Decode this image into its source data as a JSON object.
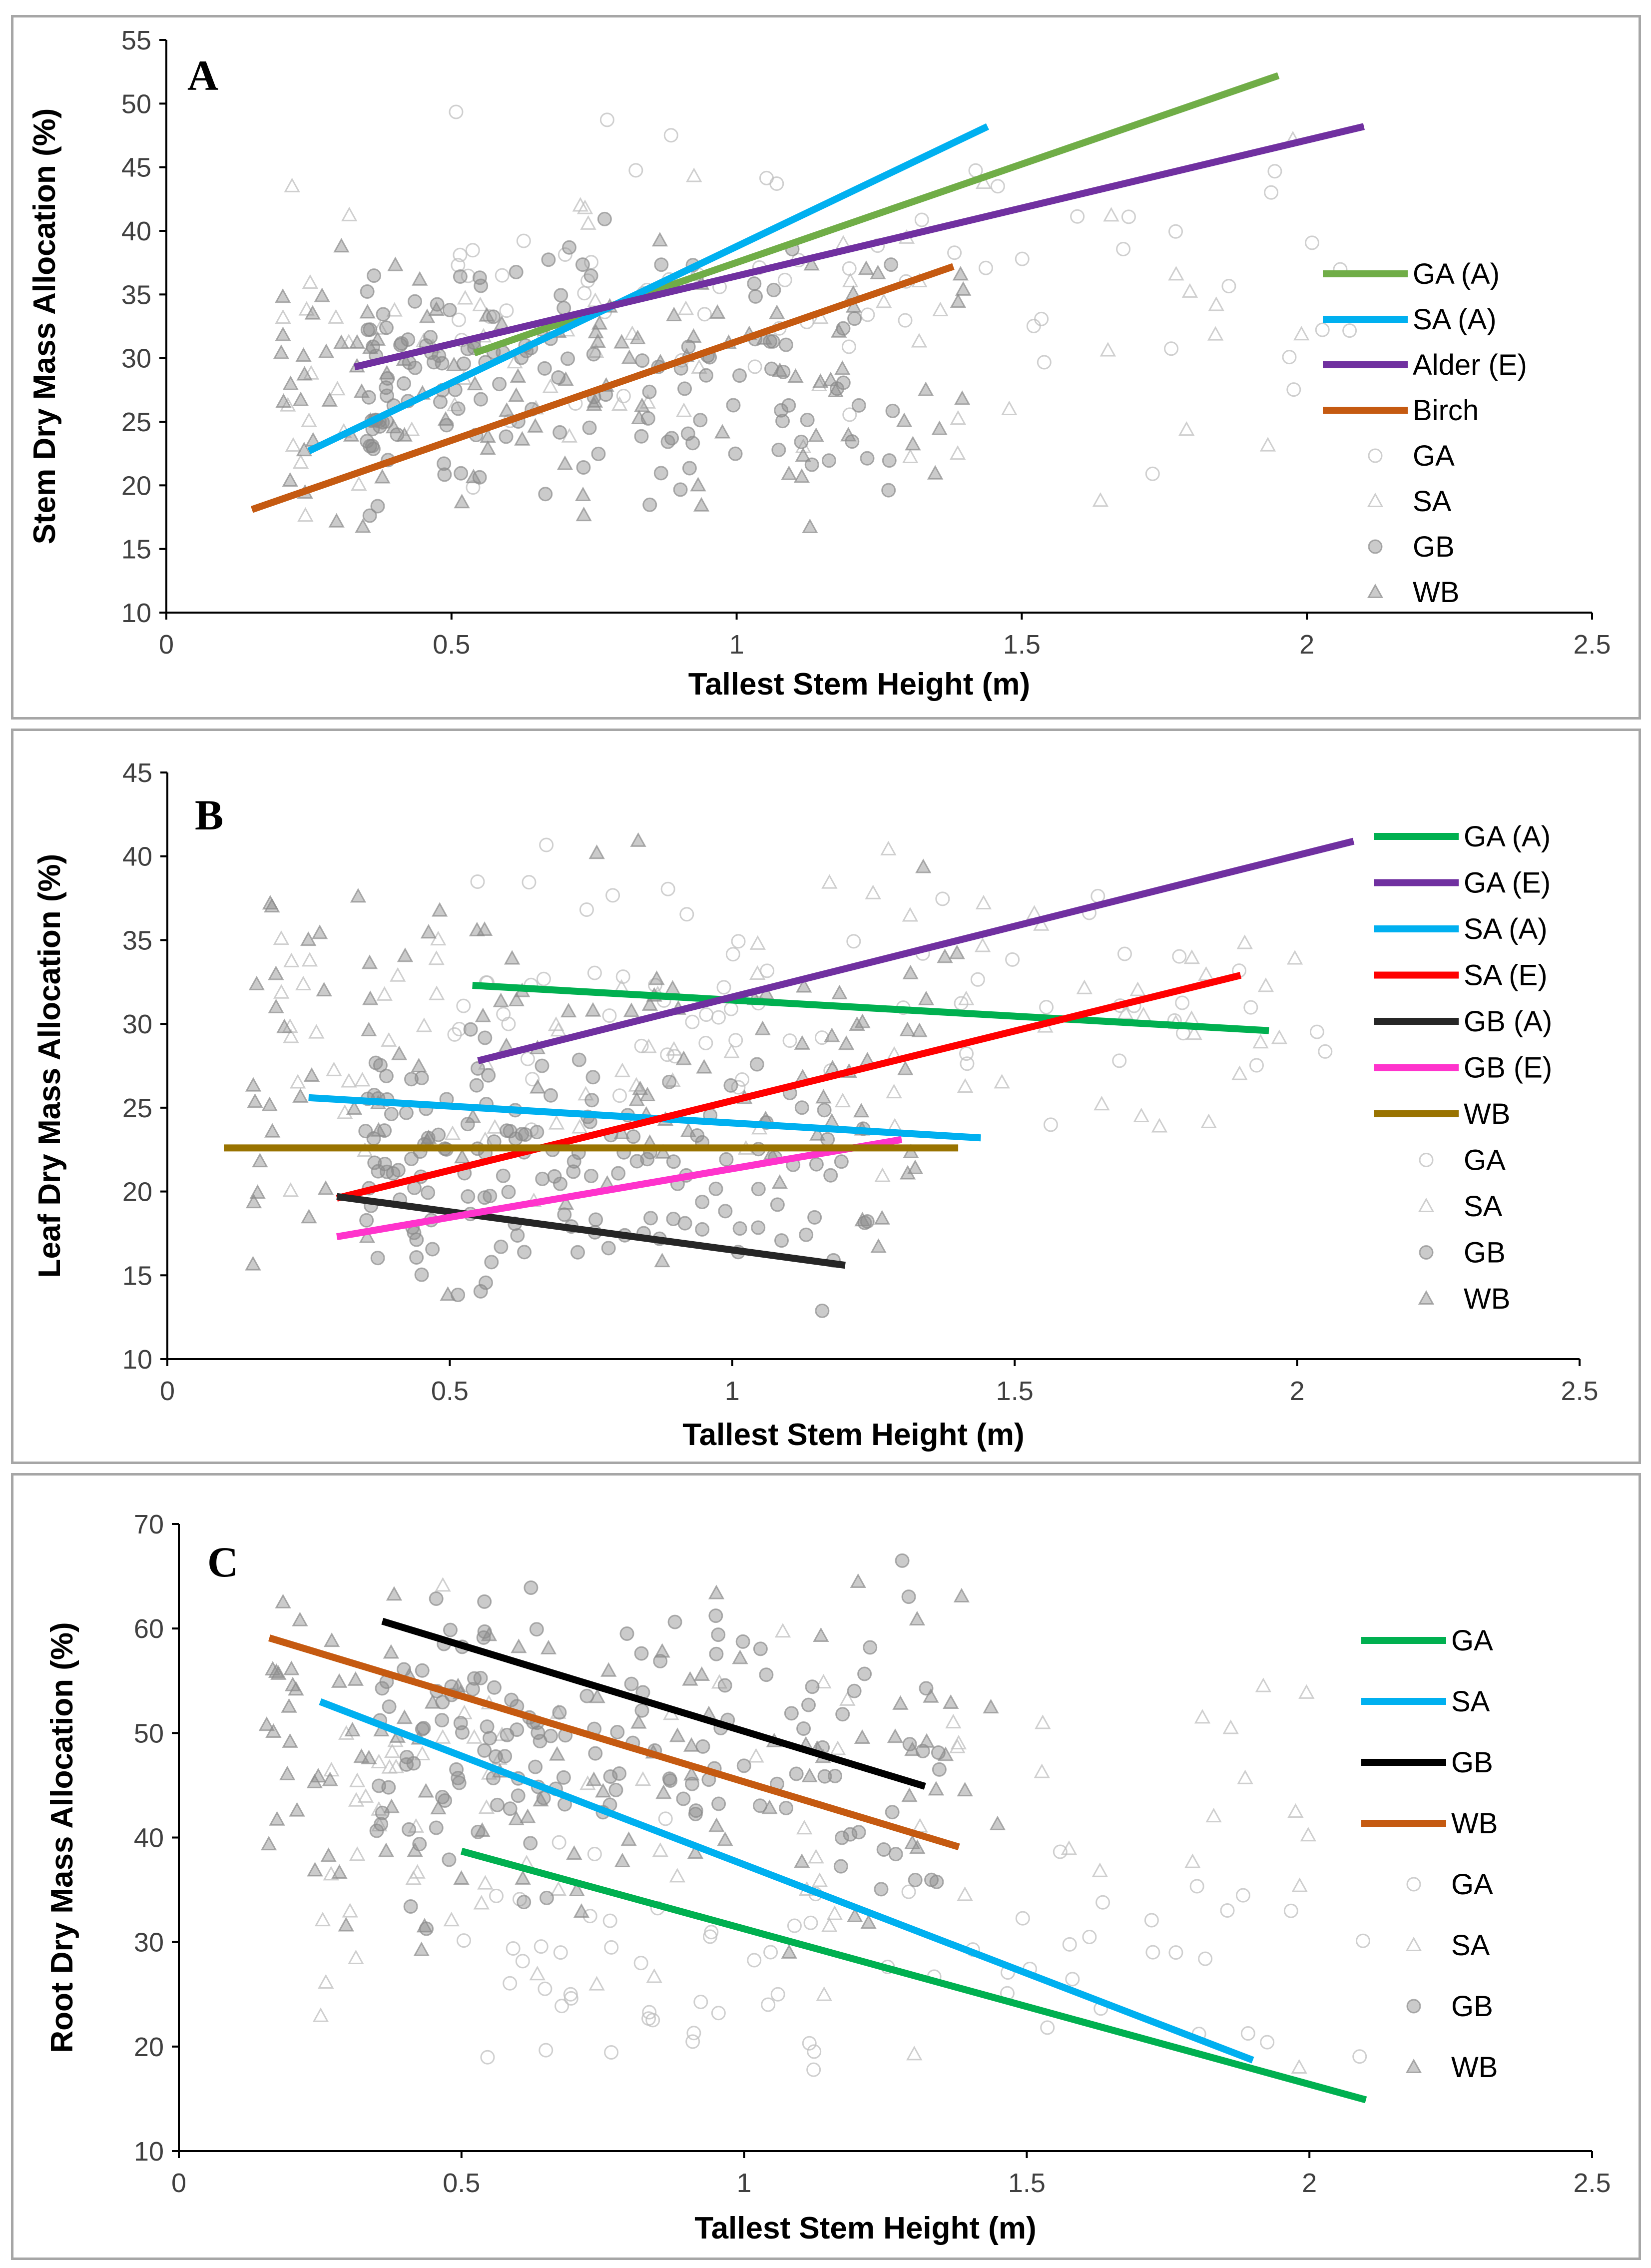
{
  "chart_data": [
    {
      "type": "scatter",
      "panel_label": "A",
      "xlabel": "Tallest Stem Height (m)",
      "ylabel": "Stem Dry Mass Allocation (%)",
      "xlim": [
        0,
        2.5
      ],
      "ylim": [
        10,
        55
      ],
      "xticks": [
        "0",
        "0.5",
        "1",
        "1.5",
        "2",
        "2.5"
      ],
      "yticks": [
        "10",
        "15",
        "20",
        "25",
        "30",
        "35",
        "40",
        "45",
        "50",
        "55"
      ],
      "lines": [
        {
          "name": "GA (A)",
          "color": "#70ad47",
          "x": [
            0.54,
            1.95
          ],
          "y": [
            30.4,
            52.2
          ]
        },
        {
          "name": "SA (A)",
          "color": "#00b0f0",
          "x": [
            0.25,
            1.44
          ],
          "y": [
            22.7,
            48.2
          ]
        },
        {
          "name": "Alder (E)",
          "color": "#7030a0",
          "x": [
            0.33,
            2.1
          ],
          "y": [
            29.3,
            48.2
          ]
        },
        {
          "name": "Birch",
          "color": "#c55a11",
          "x": [
            0.15,
            1.38
          ],
          "y": [
            18.1,
            37.2
          ]
        }
      ],
      "scatter_series": [
        {
          "name": "GA",
          "marker": "circle-open",
          "color": "#bfbfbf",
          "x_range": [
            0.5,
            2.1
          ],
          "y_range": [
            18,
            54
          ],
          "n": 70,
          "seed": 11
        },
        {
          "name": "SA",
          "marker": "triangle-open",
          "color": "#bfbfbf",
          "x_range": [
            0.2,
            2.0
          ],
          "y_range": [
            11,
            53
          ],
          "n": 70,
          "seed": 23
        },
        {
          "name": "GB",
          "marker": "circle-filled",
          "color": "#8c8c8c",
          "x_range": [
            0.35,
            1.3
          ],
          "y_range": [
            14,
            42
          ],
          "n": 150,
          "seed": 37
        },
        {
          "name": "WB",
          "marker": "triangle-filled",
          "color": "#8c8c8c",
          "x_range": [
            0.2,
            1.4
          ],
          "y_range": [
            11,
            46
          ],
          "n": 110,
          "seed": 53
        }
      ],
      "legend": [
        "GA (A)",
        "SA (A)",
        "Alder (E)",
        "Birch",
        "GA",
        "SA",
        "GB",
        "WB"
      ]
    },
    {
      "type": "scatter",
      "panel_label": "B",
      "xlabel": "Tallest Stem Height (m)",
      "ylabel": "Leaf Dry Mass Allocation (%)",
      "xlim": [
        0,
        2.5
      ],
      "ylim": [
        10,
        45
      ],
      "xticks": [
        "0",
        "0.5",
        "1",
        "1.5",
        "2",
        "2.5"
      ],
      "yticks": [
        "10",
        "15",
        "20",
        "25",
        "30",
        "35",
        "40",
        "45"
      ],
      "lines": [
        {
          "name": "GA (A)",
          "color": "#00b050",
          "x": [
            0.54,
            1.95
          ],
          "y": [
            32.3,
            29.6
          ]
        },
        {
          "name": "GA (E)",
          "color": "#7030a0",
          "x": [
            0.55,
            2.1
          ],
          "y": [
            27.8,
            40.9
          ]
        },
        {
          "name": "SA (A)",
          "color": "#00b0f0",
          "x": [
            0.25,
            1.44
          ],
          "y": [
            25.6,
            23.2
          ]
        },
        {
          "name": "SA (E)",
          "color": "#ff0000",
          "x": [
            0.3,
            1.9
          ],
          "y": [
            19.6,
            32.9
          ]
        },
        {
          "name": "GB (A)",
          "color": "#262626",
          "x": [
            0.3,
            1.2
          ],
          "y": [
            19.7,
            15.6
          ]
        },
        {
          "name": "GB (E)",
          "color": "#ff33cc",
          "x": [
            0.3,
            1.3
          ],
          "y": [
            17.3,
            23.1
          ]
        },
        {
          "name": "WB",
          "color": "#997300",
          "x": [
            0.1,
            1.4
          ],
          "y": [
            22.6,
            22.6
          ]
        }
      ],
      "scatter_series": [
        {
          "name": "GA",
          "marker": "circle-open",
          "color": "#bfbfbf",
          "x_range": [
            0.5,
            2.1
          ],
          "y_range": [
            19,
            42
          ],
          "n": 70,
          "seed": 61
        },
        {
          "name": "SA",
          "marker": "triangle-open",
          "color": "#bfbfbf",
          "x_range": [
            0.2,
            2.0
          ],
          "y_range": [
            15,
            44
          ],
          "n": 80,
          "seed": 73
        },
        {
          "name": "GB",
          "marker": "circle-filled",
          "color": "#8c8c8c",
          "x_range": [
            0.35,
            1.25
          ],
          "y_range": [
            11,
            32
          ],
          "n": 150,
          "seed": 89
        },
        {
          "name": "WB",
          "marker": "triangle-filled",
          "color": "#8c8c8c",
          "x_range": [
            0.15,
            1.4
          ],
          "y_range": [
            11,
            44
          ],
          "n": 110,
          "seed": 97
        }
      ],
      "legend": [
        "GA (A)",
        "GA (E)",
        "SA (A)",
        "SA (E)",
        "GB (A)",
        "GB (E)",
        "WB",
        "GA",
        "SA",
        "GB",
        "WB"
      ]
    },
    {
      "type": "scatter",
      "panel_label": "C",
      "xlabel": "Tallest Stem Height (m)",
      "ylabel": "Root Dry Mass Allocation (%)",
      "xlim": [
        0,
        2.5
      ],
      "ylim": [
        10,
        70
      ],
      "xticks": [
        "0",
        "0.5",
        "1",
        "1.5",
        "2",
        "2.5"
      ],
      "yticks": [
        "10",
        "20",
        "30",
        "40",
        "50",
        "60",
        "70"
      ],
      "lines": [
        {
          "name": "GA",
          "color": "#00b050",
          "x": [
            0.5,
            2.1
          ],
          "y": [
            38.7,
            14.9
          ]
        },
        {
          "name": "SA",
          "color": "#00b0f0",
          "x": [
            0.25,
            1.9
          ],
          "y": [
            53.0,
            18.7
          ]
        },
        {
          "name": "GB",
          "color": "#000000",
          "x": [
            0.36,
            1.32
          ],
          "y": [
            60.7,
            44.9
          ]
        },
        {
          "name": "WB",
          "color": "#c55a11",
          "x": [
            0.16,
            1.38
          ],
          "y": [
            59.1,
            39.1
          ]
        }
      ],
      "scatter_series": [
        {
          "name": "GA",
          "marker": "circle-open",
          "color": "#bfbfbf",
          "x_range": [
            0.5,
            2.1
          ],
          "y_range": [
            12,
            45
          ],
          "n": 70,
          "seed": 101
        },
        {
          "name": "SA",
          "marker": "triangle-open",
          "color": "#bfbfbf",
          "x_range": [
            0.25,
            2.0
          ],
          "y_range": [
            13,
            70
          ],
          "n": 80,
          "seed": 113
        },
        {
          "name": "GB",
          "marker": "circle-filled",
          "color": "#8c8c8c",
          "x_range": [
            0.35,
            1.35
          ],
          "y_range": [
            28,
            70
          ],
          "n": 150,
          "seed": 127
        },
        {
          "name": "WB",
          "marker": "triangle-filled",
          "color": "#8c8c8c",
          "x_range": [
            0.15,
            1.45
          ],
          "y_range": [
            25,
            70
          ],
          "n": 110,
          "seed": 131
        }
      ],
      "legend": [
        "GA",
        "SA",
        "GB",
        "WB",
        "GA",
        "SA",
        "GB",
        "WB"
      ]
    }
  ]
}
